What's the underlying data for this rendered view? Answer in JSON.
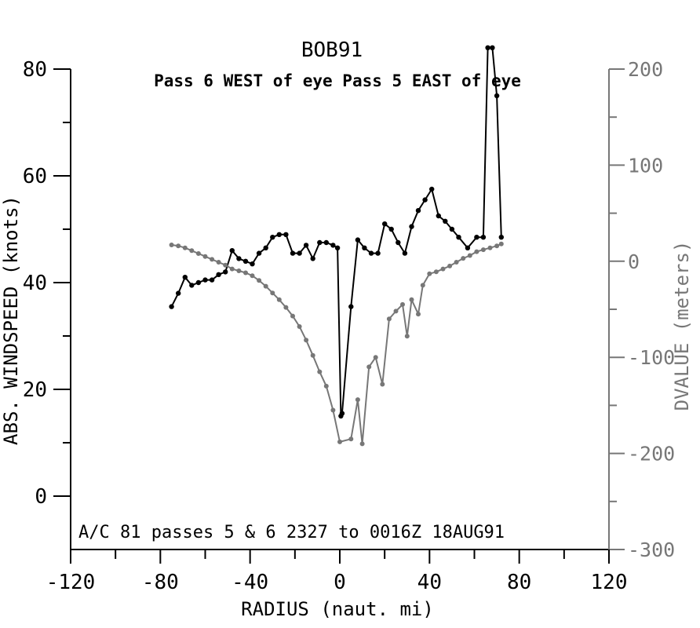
{
  "chart_data": {
    "type": "line",
    "title": "BOB91",
    "subtitle": "Pass  6 WEST of eye Pass  5 EAST of eye",
    "xlabel": "RADIUS (naut. mi)",
    "ylabel_left": "ABS. WINDSPEED (knots)",
    "ylabel_right": "DVALUE (meters)",
    "annotation": "A/C 81 passes  5 &  6    2327 to 0016Z 18AUG91",
    "xlim": [
      -120,
      120
    ],
    "ylim_left": [
      -10,
      80
    ],
    "ylim_right": [
      -300,
      200
    ],
    "x_ticks": [
      -120,
      -80,
      -40,
      0,
      40,
      80,
      120
    ],
    "x_tick_labels": [
      "-120",
      "-80",
      "-40",
      "0",
      "40",
      "80",
      "120"
    ],
    "y_left_ticks": [
      0,
      20,
      40,
      60,
      80
    ],
    "y_left_tick_labels": [
      "0",
      "20",
      "40",
      "60",
      "80"
    ],
    "y_right_ticks": [
      -300,
      -200,
      -100,
      0,
      100,
      200
    ],
    "y_right_tick_labels": [
      "-300",
      "-200",
      "-100",
      "0",
      "100",
      "200"
    ],
    "grid": false,
    "series": [
      {
        "axis": "left",
        "color": "#000000",
        "x": [
          -75,
          -72,
          -69,
          -66,
          -63,
          -60,
          -57,
          -54,
          -51,
          -48,
          -45,
          -42,
          -39,
          -36,
          -33,
          -30,
          -27,
          -24,
          -21,
          -18,
          -15,
          -12,
          -9,
          -6,
          -3,
          -1,
          0.5,
          1,
          5,
          8,
          11,
          14,
          17,
          20,
          23,
          26,
          29,
          32,
          35,
          38,
          41,
          44,
          47,
          50,
          53,
          57,
          61,
          64,
          66,
          68,
          70,
          72
        ],
        "y": [
          35.5,
          38,
          41,
          39.5,
          40,
          40.5,
          40.5,
          41.5,
          42,
          46,
          44.5,
          44,
          43.5,
          45.5,
          46.5,
          48.5,
          49,
          49,
          45.5,
          45.5,
          47,
          44.5,
          47.5,
          47.5,
          47,
          46.5,
          15,
          15.5,
          35.5,
          48,
          46.5,
          45.5,
          45.5,
          51,
          50,
          47.5,
          45.5,
          50.5,
          53.5,
          55.5,
          57.5,
          52.5,
          51.5,
          50,
          48.5,
          46.5,
          48.5,
          48.5,
          84,
          84,
          75,
          48.5
        ]
      },
      {
        "axis": "right",
        "color": "#777777",
        "x": [
          -75,
          -72,
          -69,
          -66,
          -63,
          -60,
          -57,
          -54,
          -51,
          -48,
          -45,
          -42,
          -39,
          -36,
          -33,
          -30,
          -27,
          -24,
          -21,
          -18,
          -15,
          -12,
          -9,
          -6,
          -3,
          0,
          5,
          8,
          10,
          13,
          16,
          19,
          22,
          25,
          28,
          30,
          32,
          35,
          37,
          40,
          43,
          46,
          49,
          52,
          55,
          58,
          61,
          64,
          67,
          70,
          72
        ],
        "y": [
          17,
          16,
          14,
          11,
          8,
          5,
          2,
          -1,
          -4,
          -8,
          -10,
          -12,
          -15,
          -20,
          -26,
          -33,
          -40,
          -48,
          -57,
          -68,
          -82,
          -98,
          -115,
          -130,
          -155,
          -188,
          -185,
          -144,
          -190,
          -110,
          -100,
          -128,
          -60,
          -52,
          -45,
          -78,
          -40,
          -55,
          -25,
          -13,
          -11,
          -8,
          -5,
          -1,
          3,
          6,
          10,
          12,
          14,
          16,
          18
        ]
      }
    ]
  }
}
